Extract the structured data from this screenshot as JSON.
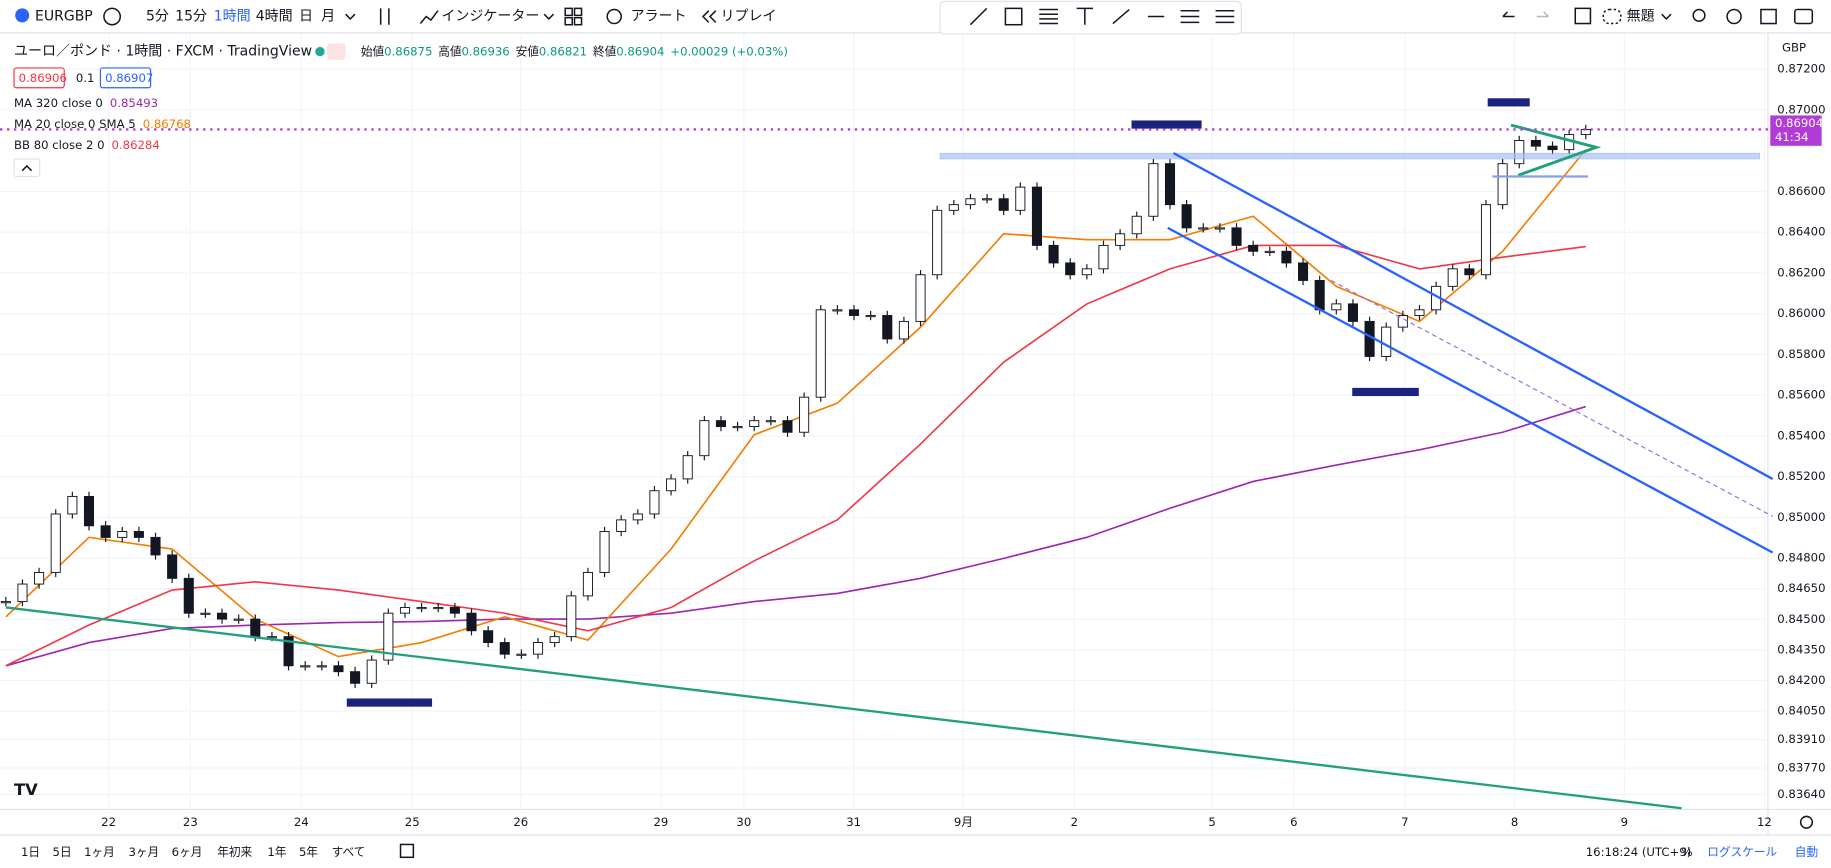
{
  "toolbar": {
    "symbol": "EURGBP",
    "intervals": [
      "5分",
      "15分",
      "1時間",
      "4時間",
      "日",
      "月"
    ],
    "indicators": "インジケーター",
    "alert": "アラート",
    "replay": "リプレイ",
    "layout": "無題"
  },
  "legend": {
    "title": "ユーロ／ポンド · 1時間 · FXCM · TradingView",
    "ohlc": [
      {
        "label": "始値",
        "value": "0.86875"
      },
      {
        "label": "高値",
        "value": "0.86936"
      },
      {
        "label": "安値",
        "value": "0.86821"
      },
      {
        "label": "終値",
        "value": "0.86904"
      }
    ],
    "change": "+0.00029 (+0.03%)",
    "bid": "0.86906",
    "spread": "0.1",
    "ask": "0.86907",
    "indicators": [
      {
        "name": "MA 320 close 0",
        "value": "0.85493",
        "color": "#9c27b0",
        "series": [
          0.84272,
          0.84386,
          0.84455,
          0.84472,
          0.84484,
          0.84489,
          0.84501,
          0.84501,
          0.8453,
          0.84587,
          0.84627,
          0.84701,
          0.84799,
          0.84902,
          0.85045,
          0.85177,
          0.85257,
          0.85332,
          0.85418,
          0.85544
        ]
      },
      {
        "name": "MA 20 close 0 SMA 5",
        "value": "0.86768",
        "color": "#f57c00",
        "series": [
          0.84512,
          0.84902,
          0.84845,
          0.84501,
          0.84317,
          0.84386,
          0.84512,
          0.84398,
          0.84845,
          0.85406,
          0.85561,
          0.85934,
          0.86392,
          0.86363,
          0.86363,
          0.86478,
          0.86134,
          0.85962,
          0.86306,
          0.86805
        ]
      },
      {
        "name": "BB 80 close 2 0",
        "value": "0.86284",
        "color": "#f23645",
        "series": [
          0.84272,
          0.84472,
          0.84644,
          0.84684,
          0.84644,
          0.84587,
          0.8453,
          0.84444,
          0.84558,
          0.84787,
          0.84988,
          0.8536,
          0.85762,
          0.86048,
          0.8622,
          0.86335,
          0.86335,
          0.8622,
          0.86277,
          0.86329
        ]
      }
    ]
  },
  "chart": {
    "currency": "GBP",
    "ylim": [
      0.83567,
      0.87355
    ],
    "yticks": [
      {
        "value": 0.872,
        "label": "0.87200"
      },
      {
        "value": 0.87,
        "label": "0.87000"
      },
      {
        "value": 0.866,
        "label": "0.86600"
      },
      {
        "value": 0.864,
        "label": "0.86400"
      },
      {
        "value": 0.862,
        "label": "0.86200"
      },
      {
        "value": 0.86,
        "label": "0.86000"
      },
      {
        "value": 0.858,
        "label": "0.85800"
      },
      {
        "value": 0.856,
        "label": "0.85600"
      },
      {
        "value": 0.854,
        "label": "0.85400"
      },
      {
        "value": 0.852,
        "label": "0.85200"
      },
      {
        "value": 0.85,
        "label": "0.85000"
      },
      {
        "value": 0.848,
        "label": "0.84800"
      },
      {
        "value": 0.8465,
        "label": "0.84650"
      },
      {
        "value": 0.845,
        "label": "0.84500"
      },
      {
        "value": 0.8435,
        "label": "0.84350"
      },
      {
        "value": 0.842,
        "label": "0.84200"
      },
      {
        "value": 0.8405,
        "label": "0.84050"
      },
      {
        "value": 0.8391,
        "label": "0.83910"
      },
      {
        "value": 0.8377,
        "label": "0.83770"
      },
      {
        "value": 0.8364,
        "label": "0.83640"
      }
    ],
    "last_price": 0.86904,
    "countdown": "41:34",
    "x_labels": [
      "22",
      "23",
      "24",
      "25",
      "26",
      "29",
      "30",
      "31",
      "9月",
      "2",
      "5",
      "6",
      "7",
      "8",
      "9",
      "12"
    ],
    "candles": [
      0.84587,
      0.84673,
      0.8473,
      0.85017,
      0.85103,
      0.84959,
      0.84902,
      0.84931,
      0.84902,
      0.84816,
      0.84701,
      0.8453,
      0.8453,
      0.84501,
      0.84501,
      0.84415,
      0.84415,
      0.84272,
      0.84272,
      0.84272,
      0.84243,
      0.84186,
      0.843,
      0.8453,
      0.84558,
      0.84558,
      0.84558,
      0.8453,
      0.84444,
      0.84386,
      0.84329,
      0.84329,
      0.84386,
      0.84415,
      0.84615,
      0.8473,
      0.84931,
      0.84988,
      0.85017,
      0.85131,
      0.85189,
      0.85303,
      0.85475,
      0.85446,
      0.85446,
      0.85475,
      0.85475,
      0.85418,
      0.8559,
      0.86019,
      0.86019,
      0.85991,
      0.85991,
      0.85876,
      0.85962,
      0.86191,
      0.86507,
      0.86535,
      0.86564,
      0.86564,
      0.86507,
      0.86621,
      0.86335,
      0.86249,
      0.86191,
      0.8622,
      0.86335,
      0.86392,
      0.86478,
      0.86736,
      0.86535,
      0.86421,
      0.86421,
      0.86421,
      0.86335,
      0.86306,
      0.86306,
      0.86249,
      0.86163,
      0.86019,
      0.86048,
      0.85962,
      0.8579,
      0.85934,
      0.85991,
      0.86019,
      0.86134,
      0.8622,
      0.86191,
      0.86535,
      0.86736,
      0.8685,
      0.86822,
      0.86805,
      0.86879,
      0.86904
    ]
  },
  "footer": {
    "ranges": [
      "1日",
      "5日",
      "1ヶ月",
      "3ヶ月",
      "6ヶ月",
      "年初来",
      "1年",
      "5年",
      "すべて"
    ],
    "clock": "16:18:24 (UTC+9)",
    "percent": "%",
    "log": "ログスケール",
    "auto": "自動"
  }
}
